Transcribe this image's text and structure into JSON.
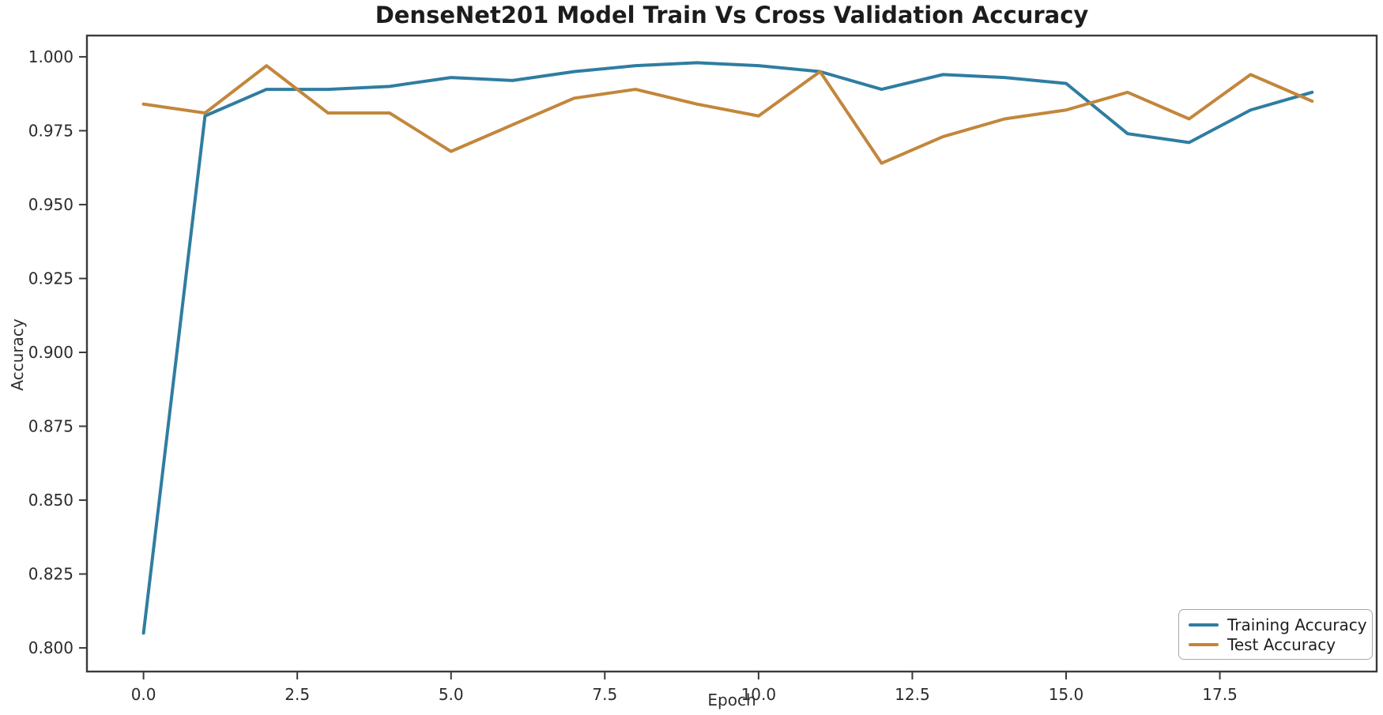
{
  "chart_data": {
    "type": "line",
    "title": "DenseNet201 Model Train Vs Cross Validation Accuracy",
    "xlabel": "Epoch",
    "ylabel": "Accuracy",
    "x": [
      0,
      1,
      2,
      3,
      4,
      5,
      6,
      7,
      8,
      9,
      10,
      11,
      12,
      13,
      14,
      15,
      16,
      17,
      18,
      19
    ],
    "series": [
      {
        "name": "Training Accuracy",
        "color": "#2f7da1",
        "values": [
          0.805,
          0.98,
          0.989,
          0.989,
          0.99,
          0.993,
          0.992,
          0.995,
          0.997,
          0.998,
          0.997,
          0.995,
          0.989,
          0.994,
          0.993,
          0.991,
          0.974,
          0.971,
          0.982,
          0.988
        ]
      },
      {
        "name": "Test Accuracy",
        "color": "#c3863b",
        "values": [
          0.984,
          0.981,
          0.997,
          0.981,
          0.981,
          0.968,
          0.977,
          0.986,
          0.989,
          0.984,
          0.98,
          0.995,
          0.964,
          0.973,
          0.979,
          0.982,
          0.988,
          0.979,
          0.994,
          0.985
        ]
      }
    ],
    "xlim": [
      -0.92,
      20.05
    ],
    "ylim": [
      0.792,
      1.0072
    ],
    "x_ticks": [
      0,
      2.5,
      5,
      7.5,
      10,
      12.5,
      15,
      17.5
    ],
    "x_tick_labels": [
      "0.0",
      "2.5",
      "5.0",
      "7.5",
      "10.0",
      "12.5",
      "15.0",
      "17.5"
    ],
    "y_ticks": [
      0.8,
      0.825,
      0.85,
      0.875,
      0.9,
      0.925,
      0.95,
      0.975,
      1.0
    ],
    "y_tick_labels": [
      "0.800",
      "0.825",
      "0.850",
      "0.875",
      "0.900",
      "0.925",
      "0.950",
      "0.975",
      "1.000"
    ],
    "grid": false,
    "legend_position": "lower right"
  },
  "style_colors": {
    "spine": "#3a3a3a",
    "tick": "#3a3a3a",
    "tick_label": "#2b2b2b",
    "background": "#ffffff"
  }
}
